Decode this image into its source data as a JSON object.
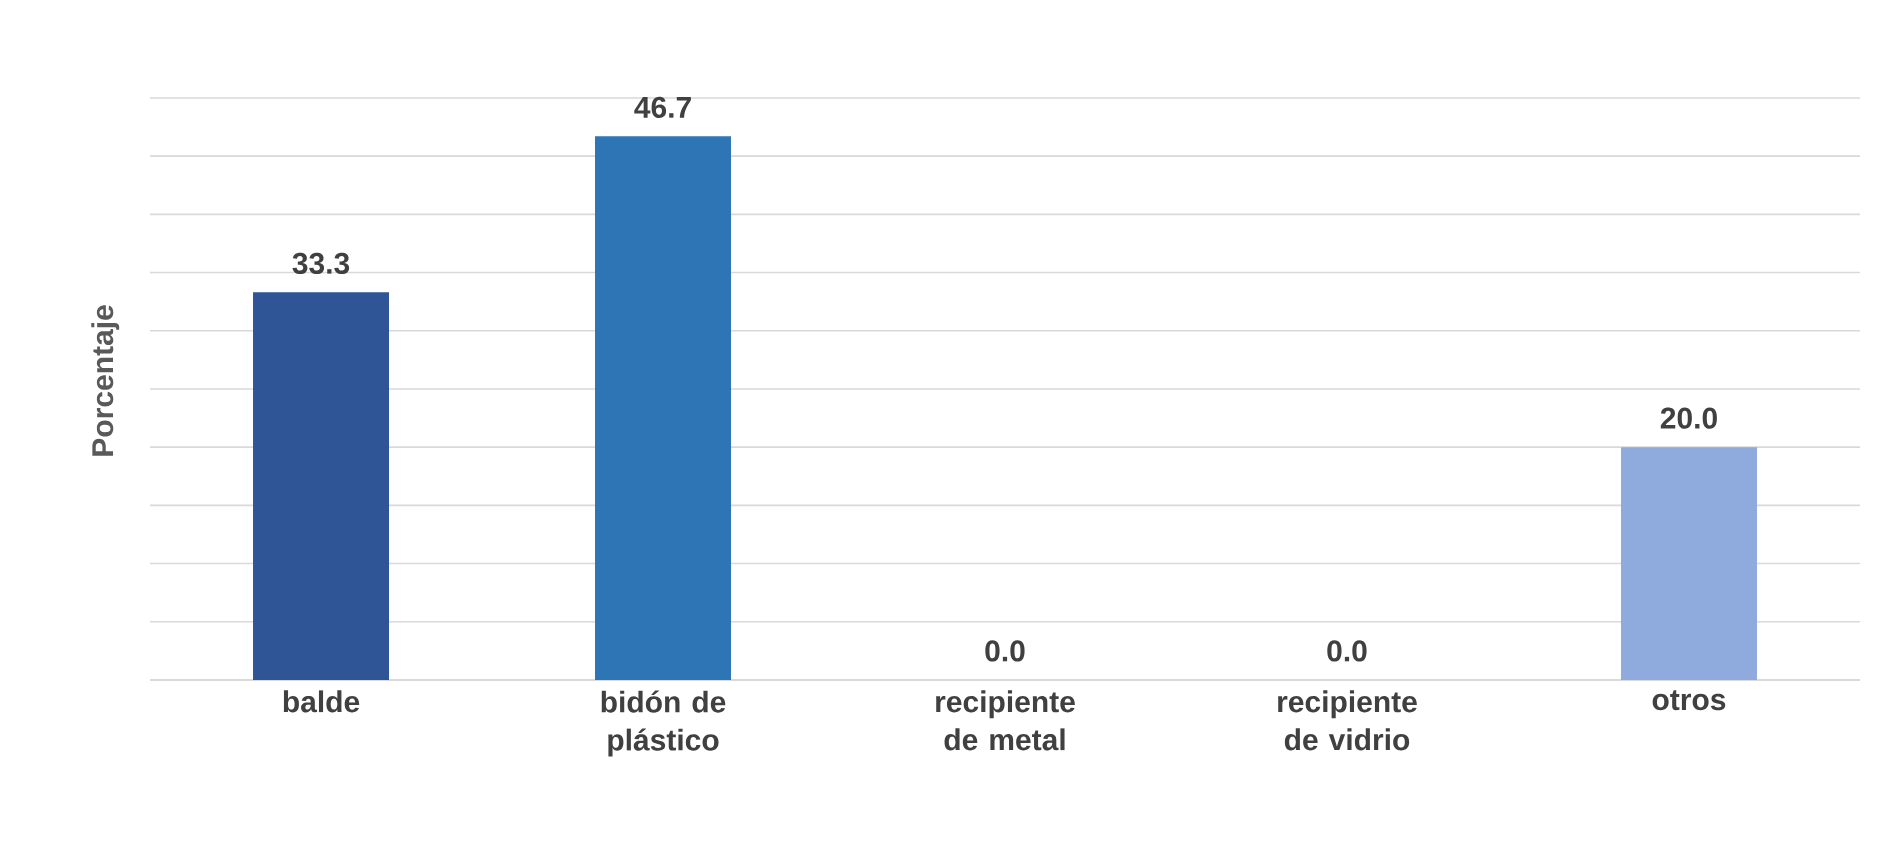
{
  "chart_data": {
    "type": "bar",
    "ylabel": "Porcentaje",
    "categories": [
      "balde",
      "bidón de plástico",
      "recipiente de metal",
      "recipiente de vidrio",
      "otros"
    ],
    "values": [
      33.3,
      46.7,
      0.0,
      0.0,
      20.0
    ],
    "value_labels": [
      "33.3",
      "46.7",
      "0.0",
      "0.0",
      "20.0"
    ],
    "colors": [
      "#2f5597",
      "#2e75b6",
      "#2e75b6",
      "#2e75b6",
      "#8faadc"
    ],
    "grid": "y"
  }
}
